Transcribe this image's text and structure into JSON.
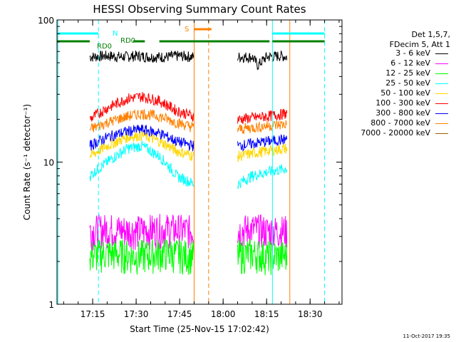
{
  "chart_data": {
    "type": "line",
    "title": "HESSI Observing Summary Count Rates",
    "xlabel": "Start Time (25-Nov-15 17:02:42)",
    "ylabel": "Count Rate (s⁻¹ detector⁻¹)",
    "y_scale": "log",
    "ylim": [
      1,
      100
    ],
    "xlim": [
      "17:02:42",
      "18:41:00"
    ],
    "x_ticks": [
      "17:15",
      "17:30",
      "17:45",
      "18:00",
      "18:15",
      "18:30"
    ],
    "y_ticks": [
      "1",
      "10",
      "100"
    ],
    "legend": {
      "header": [
        "Det 1,5,7,",
        "FDecim 5, Att 1"
      ],
      "placement": "right"
    },
    "series": [
      {
        "name": "3 - 6 keV",
        "color": "#000000",
        "segments": [
          {
            "x": [
              "17:14",
              "17:20",
              "17:25",
              "17:30",
              "17:35",
              "17:40",
              "17:45",
              "17:50"
            ],
            "y": [
              55,
              56,
              55,
              56,
              55,
              55,
              56,
              55
            ]
          },
          {
            "x": [
              "18:05",
              "18:10",
              "18:12",
              "18:15",
              "18:20",
              "18:22"
            ],
            "y": [
              55,
              55,
              48,
              55,
              56,
              55
            ]
          }
        ]
      },
      {
        "name": "6 - 12 keV",
        "color": "#ff00ff",
        "segments": [
          {
            "x": [
              "17:14",
              "17:20",
              "17:30",
              "17:40",
              "17:50"
            ],
            "y": [
              3.3,
              3.4,
              3.3,
              3.4,
              3.3
            ]
          },
          {
            "x": [
              "18:05",
              "18:10",
              "18:15",
              "18:22"
            ],
            "y": [
              3.3,
              3.4,
              3.3,
              3.3
            ]
          }
        ]
      },
      {
        "name": "12 - 25 keV",
        "color": "#00ff00",
        "segments": [
          {
            "x": [
              "17:14",
              "17:20",
              "17:30",
              "17:40",
              "17:50"
            ],
            "y": [
              2.2,
              2.3,
              2.2,
              2.3,
              2.2
            ]
          },
          {
            "x": [
              "18:05",
              "18:10",
              "18:15",
              "18:22"
            ],
            "y": [
              2.2,
              2.3,
              2.2,
              2.2
            ]
          }
        ]
      },
      {
        "name": "25 - 50 keV",
        "color": "#00ffff",
        "segments": [
          {
            "x": [
              "17:14",
              "17:20",
              "17:27",
              "17:32",
              "17:38",
              "17:44",
              "17:50"
            ],
            "y": [
              8,
              10,
              12.5,
              13,
              11,
              8,
              7
            ]
          },
          {
            "x": [
              "18:05",
              "18:10",
              "18:15",
              "18:22"
            ],
            "y": [
              7,
              8,
              8.5,
              9
            ]
          }
        ]
      },
      {
        "name": "50 - 100 keV",
        "color": "#ffd700",
        "segments": [
          {
            "x": [
              "17:14",
              "17:20",
              "17:27",
              "17:32",
              "17:38",
              "17:44",
              "17:50"
            ],
            "y": [
              11,
              13,
              15,
              15.5,
              14,
              12,
              11
            ]
          },
          {
            "x": [
              "18:05",
              "18:10",
              "18:15",
              "18:22"
            ],
            "y": [
              11,
              11.5,
              12,
              12.5
            ]
          }
        ]
      },
      {
        "name": "100 - 300 keV",
        "color": "#ff0000",
        "segments": [
          {
            "x": [
              "17:14",
              "17:20",
              "17:27",
              "17:32",
              "17:38",
              "17:44",
              "17:50"
            ],
            "y": [
              20,
              24,
              28,
              29,
              27,
              23,
              21
            ]
          },
          {
            "x": [
              "18:05",
              "18:10",
              "18:15",
              "18:22"
            ],
            "y": [
              20,
              20.5,
              21,
              22
            ]
          }
        ]
      },
      {
        "name": "300 - 800 keV",
        "color": "#0000ff",
        "segments": [
          {
            "x": [
              "17:14",
              "17:20",
              "17:27",
              "17:32",
              "17:38",
              "17:44",
              "17:50"
            ],
            "y": [
              13,
              15,
              16.5,
              17,
              16,
              14,
              13
            ]
          },
          {
            "x": [
              "18:05",
              "18:10",
              "18:15",
              "18:22"
            ],
            "y": [
              13,
              13.5,
              14,
              14.5
            ]
          }
        ]
      },
      {
        "name": "800 - 7000 keV",
        "color": "#ff8000",
        "segments": [
          {
            "x": [
              "17:14",
              "17:20",
              "17:27",
              "17:32",
              "17:38",
              "17:44",
              "17:50"
            ],
            "y": [
              17,
              19,
              21,
              22,
              21,
              19,
              17.5
            ]
          },
          {
            "x": [
              "18:05",
              "18:10",
              "18:15",
              "18:22"
            ],
            "y": [
              17,
              17.5,
              18,
              18.5
            ]
          }
        ]
      },
      {
        "name": "7000 - 20000 keV",
        "color": "#996600",
        "segments": []
      }
    ],
    "annotations": {
      "text_labels": [
        "N",
        "S",
        "RD0",
        "RD0"
      ],
      "vertical_lines": [
        {
          "x": "17:03",
          "color": "#00ffff",
          "style": "solid"
        },
        {
          "x": "17:17",
          "color": "#00ffff",
          "style": "dashed"
        },
        {
          "x": "17:50",
          "color": "#ff8000",
          "style": "solid"
        },
        {
          "x": "17:55",
          "color": "#ff8000",
          "style": "dashed"
        },
        {
          "x": "18:17",
          "color": "#00ffff",
          "style": "solid"
        },
        {
          "x": "18:35",
          "color": "#00ffff",
          "style": "dashed"
        },
        {
          "x": "18:23",
          "color": "#ff8000",
          "style": "solid"
        }
      ],
      "flag_bars": [
        {
          "label": "N",
          "color": "#00ffff",
          "segments": [
            [
              "17:02",
              "17:17"
            ],
            [
              "18:17",
              "18:35"
            ]
          ]
        },
        {
          "label": "S",
          "color": "#ff8000",
          "segments": [
            [
              "17:50",
              "17:56"
            ]
          ]
        },
        {
          "label": "RD0",
          "color": "#008000",
          "segments": [
            [
              "17:02",
              "17:14"
            ],
            [
              "17:29",
              "17:33"
            ],
            [
              "17:38",
              "18:12"
            ],
            [
              "18:12",
              "18:16"
            ],
            [
              "18:17",
              "18:35"
            ]
          ]
        }
      ]
    }
  },
  "footer": "11-Oct-2017 19:35"
}
